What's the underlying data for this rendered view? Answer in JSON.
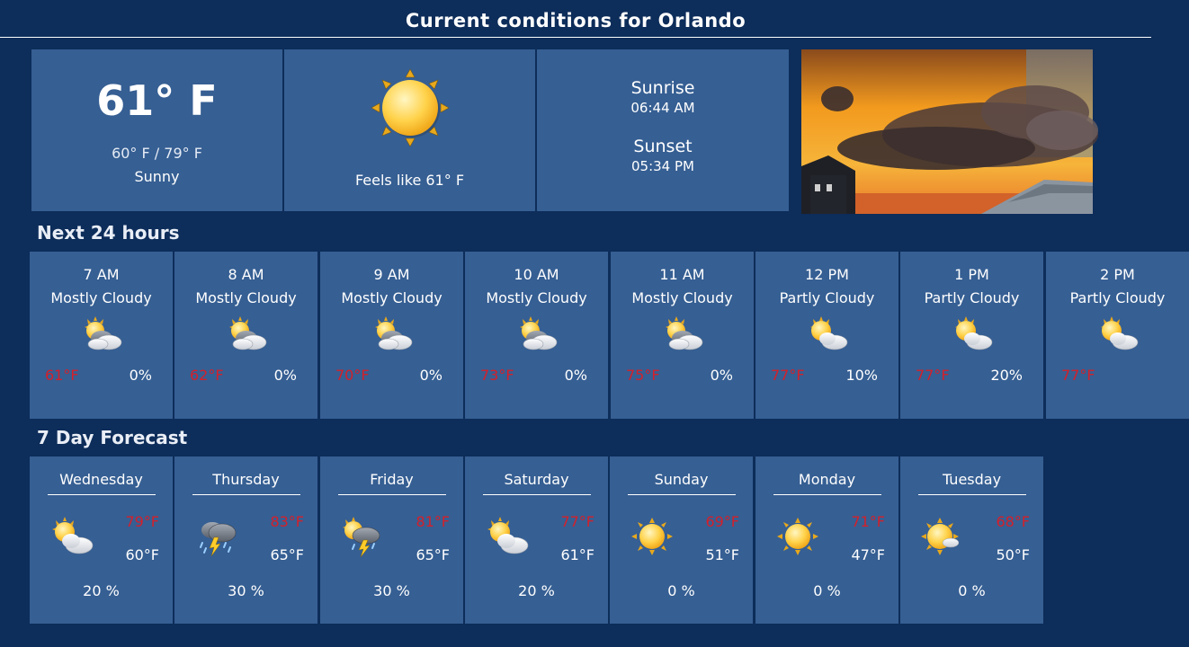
{
  "header": {
    "title": "Current conditions for Orlando"
  },
  "current": {
    "temp": "61° F",
    "range": "60° F / 79° F",
    "condition": "Sunny",
    "icon": "sun-icon",
    "feels_like": "Feels like 61° F",
    "sunrise_label": "Sunrise",
    "sunrise_time": "06:44 AM",
    "sunset_label": "Sunset",
    "sunset_time": "05:34 PM"
  },
  "hourly": {
    "title": "Next 24 hours",
    "items": [
      {
        "time": "7 AM",
        "condition": "Mostly Cloudy",
        "icon": "mostly-cloudy-icon",
        "temp": "61°F",
        "precip": "0%"
      },
      {
        "time": "8 AM",
        "condition": "Mostly Cloudy",
        "icon": "mostly-cloudy-icon",
        "temp": "62°F",
        "precip": "0%"
      },
      {
        "time": "9 AM",
        "condition": "Mostly Cloudy",
        "icon": "mostly-cloudy-icon",
        "temp": "70°F",
        "precip": "0%"
      },
      {
        "time": "10 AM",
        "condition": "Mostly Cloudy",
        "icon": "mostly-cloudy-icon",
        "temp": "73°F",
        "precip": "0%"
      },
      {
        "time": "11 AM",
        "condition": "Mostly Cloudy",
        "icon": "mostly-cloudy-icon",
        "temp": "75°F",
        "precip": "0%"
      },
      {
        "time": "12 PM",
        "condition": "Partly Cloudy",
        "icon": "partly-cloudy-icon",
        "temp": "77°F",
        "precip": "10%"
      },
      {
        "time": "1 PM",
        "condition": "Partly Cloudy",
        "icon": "partly-cloudy-icon",
        "temp": "77°F",
        "precip": "20%"
      },
      {
        "time": "2 PM",
        "condition": "Partly Cloudy",
        "icon": "partly-cloudy-icon",
        "temp": "77°F",
        "precip": ""
      }
    ]
  },
  "daily": {
    "title": "7 Day Forecast",
    "items": [
      {
        "day": "Wednesday",
        "icon": "partly-cloudy-icon",
        "high": "79°F",
        "low": "60°F",
        "precip": "20 %"
      },
      {
        "day": "Thursday",
        "icon": "thunderstorm-icon",
        "high": "83°F",
        "low": "65°F",
        "precip": "30 %"
      },
      {
        "day": "Friday",
        "icon": "sun-thunderstorm-icon",
        "high": "81°F",
        "low": "65°F",
        "precip": "30 %"
      },
      {
        "day": "Saturday",
        "icon": "partly-cloudy-icon",
        "high": "77°F",
        "low": "61°F",
        "precip": "20 %"
      },
      {
        "day": "Sunday",
        "icon": "sun-icon",
        "high": "69°F",
        "low": "51°F",
        "precip": "0 %"
      },
      {
        "day": "Monday",
        "icon": "sun-icon",
        "high": "71°F",
        "low": "47°F",
        "precip": "0 %"
      },
      {
        "day": "Tuesday",
        "icon": "mostly-sunny-icon",
        "high": "68°F",
        "low": "50°F",
        "precip": "0 %"
      }
    ]
  },
  "colors": {
    "background": "#0d2d5a",
    "panel": "#365f93",
    "high_temp": "#d4202a"
  }
}
